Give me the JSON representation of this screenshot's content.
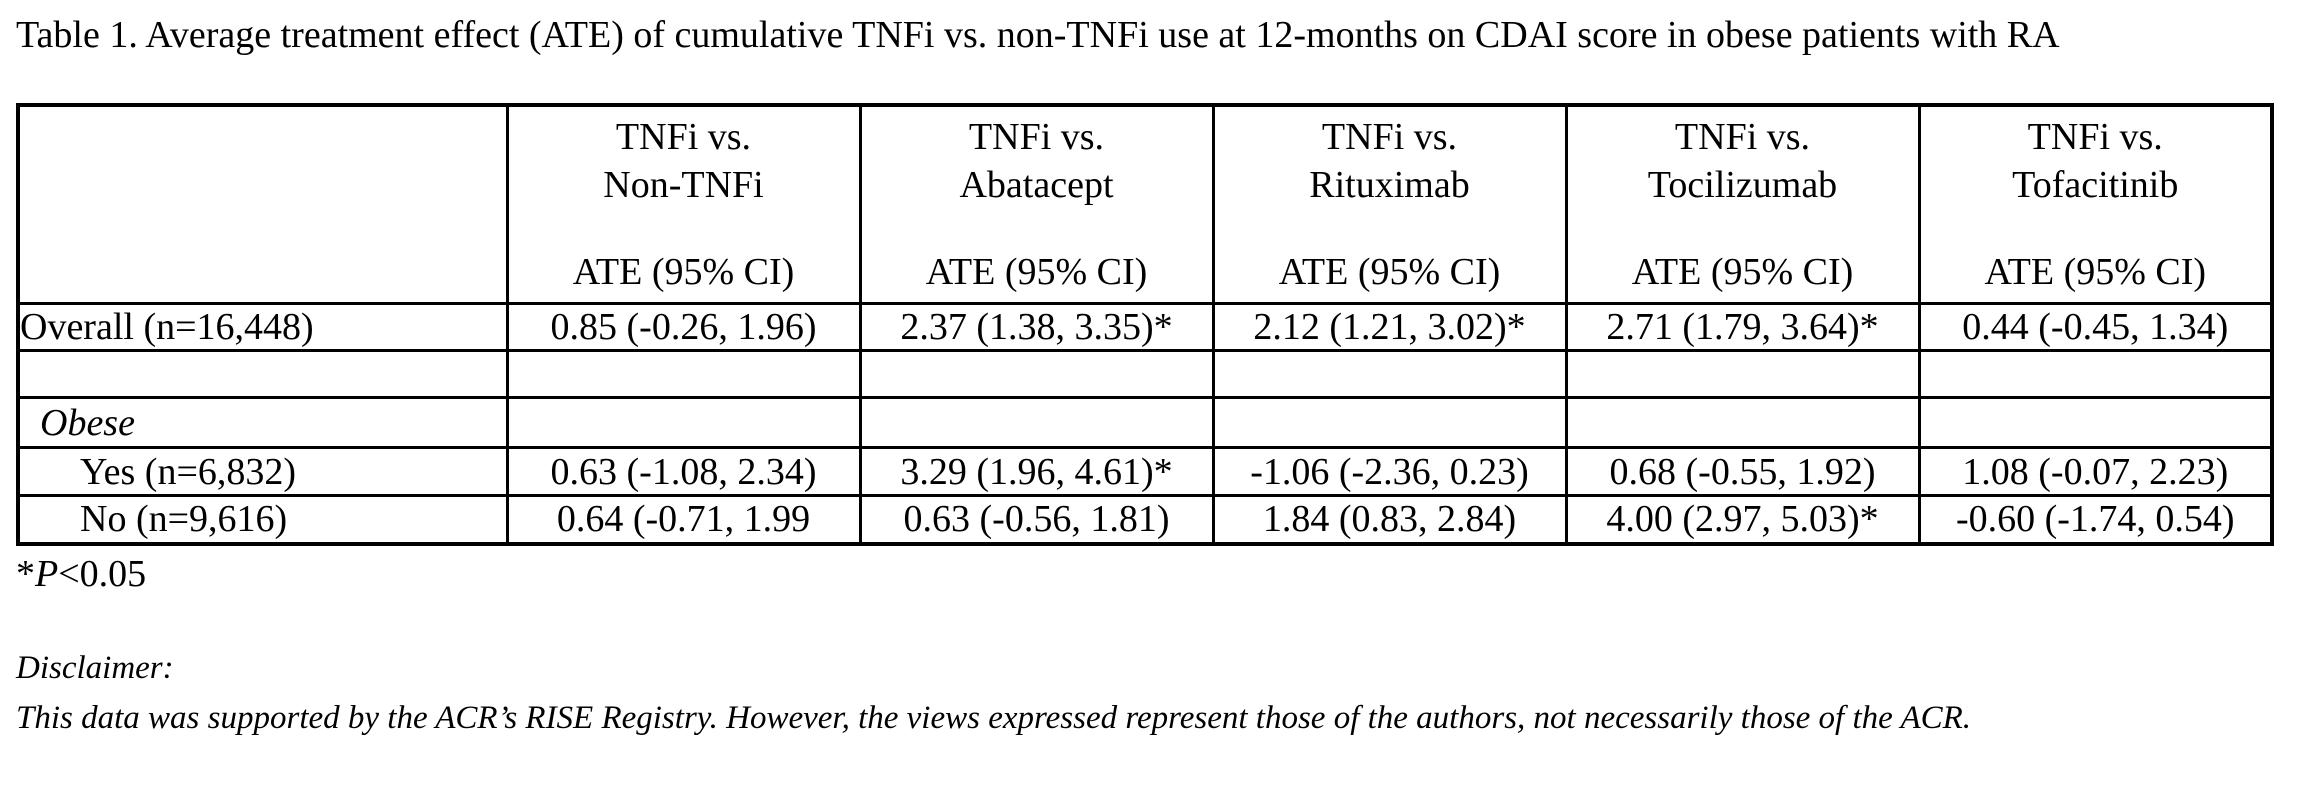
{
  "page": {
    "background": "#ffffff",
    "text_color": "#000000"
  },
  "title": "Table 1. Average treatment effect (ATE) of cumulative TNFi vs. non-TNFi use at 12-months on CDAI score in obese patients with RA",
  "table": {
    "header": {
      "row_label_column": "",
      "comparisons": [
        {
          "lines": [
            "TNFi vs.",
            "Non-TNFi"
          ],
          "measure": "ATE (95% CI)"
        },
        {
          "lines": [
            "TNFi vs.",
            "Abatacept"
          ],
          "measure": "ATE (95% CI)"
        },
        {
          "lines": [
            "TNFi vs.",
            "Rituximab"
          ],
          "measure": "ATE (95% CI)"
        },
        {
          "lines": [
            "TNFi vs.",
            "Tocilizumab"
          ],
          "measure": "ATE (95% CI)"
        },
        {
          "lines": [
            "TNFi vs.",
            "Tofacitinib"
          ],
          "measure": "ATE (95% CI)"
        }
      ]
    },
    "rows": [
      {
        "type": "data",
        "label": "Overall (n=16,448)",
        "values": [
          "0.85 (-0.26, 1.96)",
          "2.37 (1.38, 3.35)*",
          "2.12 (1.21, 3.02)*",
          "2.71 (1.79, 3.64)*",
          "0.44 (-0.45, 1.34)"
        ]
      },
      {
        "type": "empty",
        "label": "",
        "values": [
          "",
          "",
          "",
          "",
          ""
        ]
      },
      {
        "type": "section",
        "label": "Obese",
        "values": [
          "",
          "",
          "",
          "",
          ""
        ]
      },
      {
        "type": "data-indent",
        "label": "Yes (n=6,832)",
        "values": [
          "0.63 (-1.08, 2.34)",
          "3.29 (1.96, 4.61)*",
          "-1.06 (-2.36, 0.23)",
          "0.68 (-0.55, 1.92)",
          "1.08 (-0.07, 2.23)"
        ]
      },
      {
        "type": "data-indent",
        "label": "No (n=9,616)",
        "values": [
          "0.64 (-0.71, 1.99",
          "0.63 (-0.56, 1.81)",
          "1.84 (0.83, 2.84)",
          "4.00 (2.97, 5.03)*",
          "-0.60 (-1.74, 0.54)"
        ]
      }
    ]
  },
  "footnote": {
    "marker": "*",
    "stat_symbol": "P",
    "threshold": "<0.05"
  },
  "disclaimer": {
    "label": "Disclaimer:",
    "text": "This data was supported by the ACR’s RISE Registry. However, the views expressed represent those of the authors, not necessarily those of the ACR."
  }
}
